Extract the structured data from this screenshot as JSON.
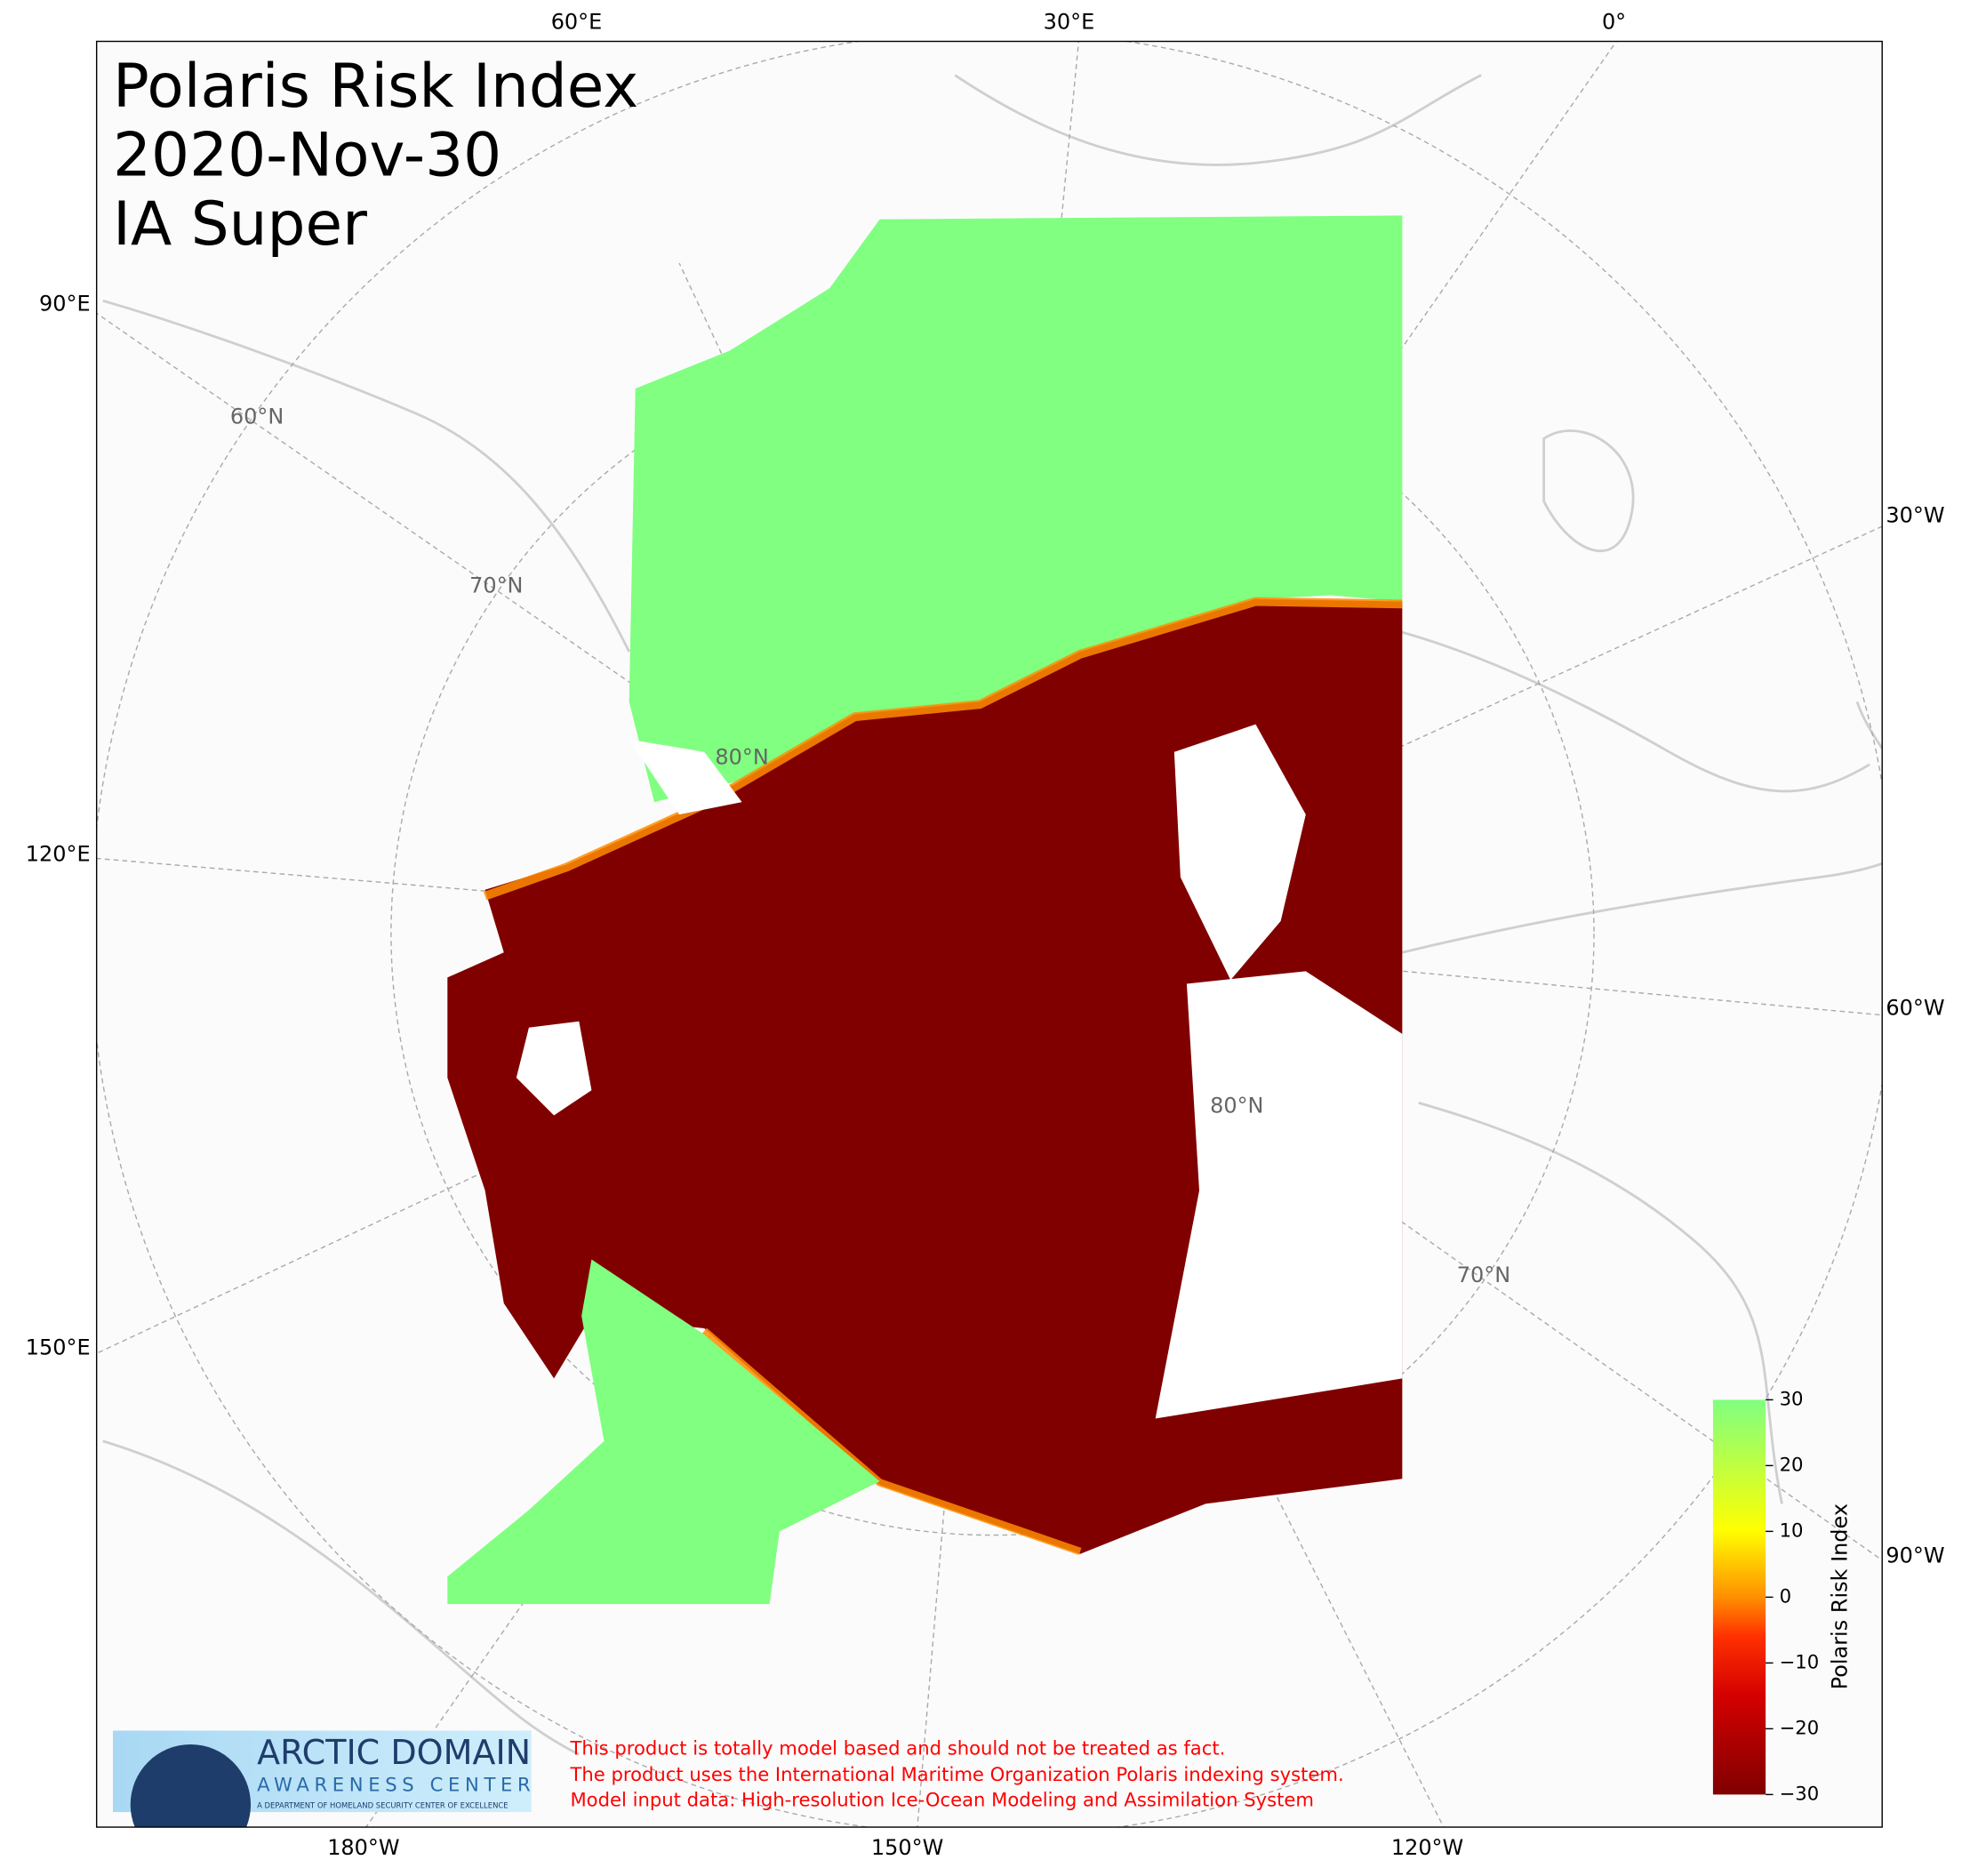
{
  "title": [
    "Polaris Risk Index",
    "2020-Nov-30",
    "IA Super"
  ],
  "meridian_labels": [
    "60°E",
    "30°E",
    "0°",
    "90°E",
    "120°E",
    "150°E",
    "30°W",
    "60°W",
    "90°W",
    "180°W",
    "150°W",
    "120°W"
  ],
  "parallel_labels": [
    "60°N",
    "70°N",
    "80°N",
    "80°N",
    "70°N"
  ],
  "colorbar": {
    "label": "Polaris Risk Index",
    "lim": [
      -30,
      30
    ],
    "ticks": [
      {
        "value": -30,
        "label": "−30"
      },
      {
        "value": -20,
        "label": "−20"
      },
      {
        "value": -10,
        "label": "−10"
      },
      0,
      10,
      20,
      30
    ]
  },
  "logo": {
    "title": "ARCTIC DOMAIN",
    "subtitle": "AWARENESS CENTER",
    "tagline": "A DEPARTMENT OF HOMELAND SECURITY CENTER OF EXCELLENCE"
  },
  "disclaimer": [
    "This product is totally model based and should not be treated as fact.",
    "The product uses the International Maritime Organization Polaris indexing system.",
    "Model input data: High-resolution Ice-Ocean Modeling and Assimilation System"
  ]
}
